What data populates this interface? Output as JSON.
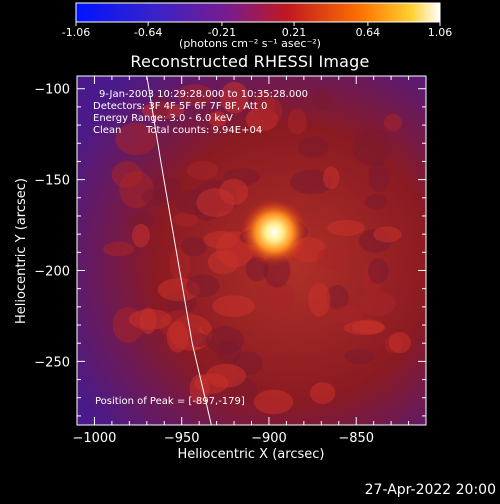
{
  "colorbar": {
    "ticks": [
      "-1.06",
      "-0.64",
      "-0.21",
      "0.21",
      "0.64",
      "1.06"
    ],
    "tick_values": [
      -1.06,
      -0.64,
      -0.21,
      0.21,
      0.64,
      1.06
    ],
    "range": [
      -1.06,
      1.06
    ],
    "units_label": "(photons cm⁻² s⁻¹ asec⁻²)"
  },
  "footer": {
    "date": "27-Apr-2022 20:00"
  },
  "chart_data": {
    "type": "heatmap",
    "title": "Reconstructed RHESSI Image",
    "xlabel": "Heliocentric X (arcsec)",
    "ylabel": "Heliocentric Y (arcsec)",
    "xlim": [
      -1010,
      -810
    ],
    "ylim": [
      -285,
      -93
    ],
    "x_ticks": [
      -1000,
      -950,
      -900,
      -850
    ],
    "x_tick_labels": [
      "−1000",
      "−950",
      "−900",
      "−850"
    ],
    "y_ticks": [
      -100,
      -150,
      -200,
      -250
    ],
    "y_tick_labels": [
      "−100",
      "−150",
      "−200",
      "−250"
    ],
    "annotations": [
      "9-Jan-2003 10:29:28.000 to 10:35:28.000",
      "Detectors: 3F 4F 5F 6F 7F 8F, Att 0",
      "Energy Range: 3.0 - 6.0 keV",
      "Clean",
      "Total counts: 9.94E+04"
    ],
    "peak_label": "Position of Peak = [-897,-179]",
    "peak": {
      "x": -897,
      "y": -179
    },
    "limb_curve": [
      [
        -970,
        -93
      ],
      [
        -962,
        -140
      ],
      [
        -953,
        -190
      ],
      [
        -944,
        -240
      ],
      [
        -933,
        -285
      ]
    ],
    "colormap": [
      "#1a0a8a",
      "#6a1a9a",
      "#8a1a2a",
      "#d92020",
      "#ffa020",
      "#ffffff"
    ]
  }
}
